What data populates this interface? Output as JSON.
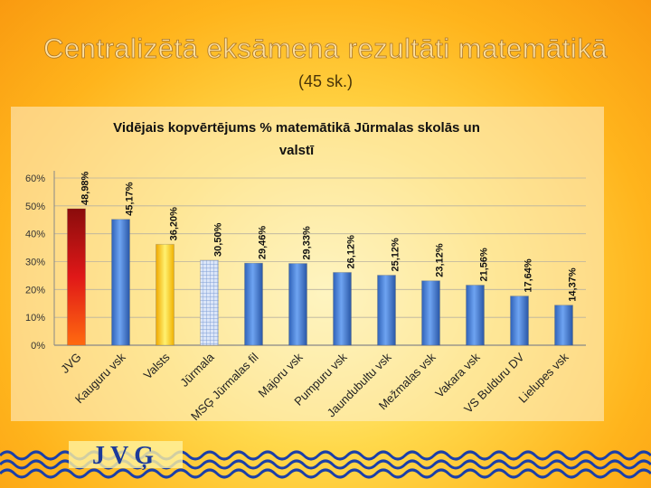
{
  "slide": {
    "title": "Centralizētā eksāmena rezultāti  matemātikā",
    "subtitle": "(45 sk.)",
    "logo_text": "JVĢ"
  },
  "chart_data": {
    "type": "bar",
    "title": "Vidējais kopvērtējums % matemātikā Jūrmalas skolās un valstī",
    "categories": [
      "JVG",
      "Kauguru vsk",
      "Valsts",
      "Jūrmala",
      "MSĢ Jūrmalas fil",
      "Majoru vsk",
      "Pumpuru vsk",
      "Jaundubultu vsk",
      "Mežmalas vsk",
      "Vakara vsk",
      "VS Bulduru DV",
      "Lielupes vsk"
    ],
    "values": [
      48.98,
      45.17,
      36.2,
      30.5,
      29.46,
      29.33,
      26.12,
      25.12,
      23.12,
      21.56,
      17.64,
      14.37
    ],
    "value_labels": [
      "48,98%",
      "45,17%",
      "36,20%",
      "30,50%",
      "29,46%",
      "29,33%",
      "26,12%",
      "25,12%",
      "23,12%",
      "21,56%",
      "17,64%",
      "14,37%"
    ],
    "bar_styles": [
      "red",
      "blue",
      "yellow",
      "grid",
      "blue",
      "blue",
      "blue",
      "blue",
      "blue",
      "blue",
      "blue",
      "blue"
    ],
    "y_ticks": [
      "0%",
      "10%",
      "20%",
      "30%",
      "40%",
      "50%",
      "60%"
    ],
    "ylim": [
      0,
      60
    ],
    "grid": true,
    "legend": "none",
    "colors": {
      "blue": "#4a86e0",
      "red": "#d81818",
      "yellow": "#ffe31a",
      "grid": "#b8c8e8"
    }
  }
}
